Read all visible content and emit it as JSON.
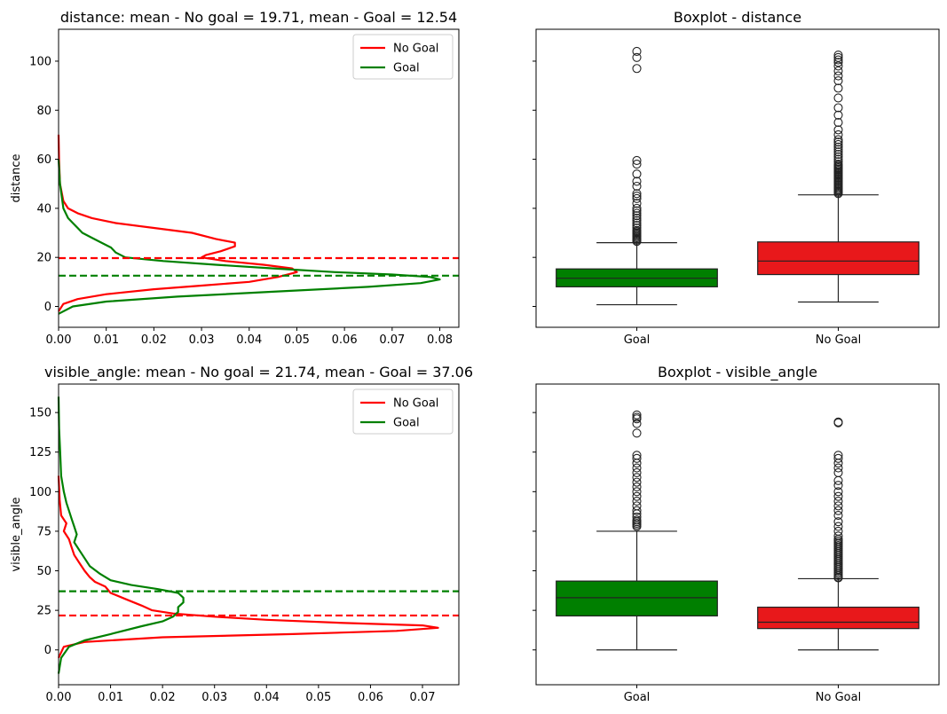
{
  "colors": {
    "no_goal": "#ff0000",
    "goal": "#008000",
    "box_goal": "#007f00",
    "box_no_goal": "#e8181b"
  },
  "chart_data": [
    {
      "type": "line",
      "orientation": "horizontal-density",
      "title": "distance: mean - No goal = 19.71, mean - Goal = 12.54",
      "ylabel": "distance",
      "xlabel": "",
      "xlim": [
        0,
        0.084
      ],
      "ylim": [
        -8.5,
        113
      ],
      "xticks": [
        "0.00",
        "0.01",
        "0.02",
        "0.03",
        "0.04",
        "0.05",
        "0.06",
        "0.07",
        "0.08"
      ],
      "xtick_values": [
        0,
        0.01,
        0.02,
        0.03,
        0.04,
        0.05,
        0.06,
        0.07,
        0.08
      ],
      "yticks": [
        "0",
        "20",
        "40",
        "60",
        "80",
        "100"
      ],
      "ytick_values": [
        0,
        20,
        40,
        60,
        80,
        100
      ],
      "legend": {
        "placement": "top-right",
        "entries": [
          "No Goal",
          "Goal"
        ]
      },
      "means": [
        {
          "series": "No Goal",
          "value": 19.71
        },
        {
          "series": "Goal",
          "value": 12.54
        }
      ],
      "series": [
        {
          "name": "No Goal",
          "color": "#ff0000",
          "points": [
            [
              0,
              -2
            ],
            [
              0.001,
              1
            ],
            [
              0.004,
              3
            ],
            [
              0.01,
              5
            ],
            [
              0.02,
              7
            ],
            [
              0.03,
              8.5
            ],
            [
              0.04,
              10
            ],
            [
              0.046,
              12
            ],
            [
              0.05,
              14
            ],
            [
              0.049,
              15.5
            ],
            [
              0.043,
              17
            ],
            [
              0.035,
              18.5
            ],
            [
              0.03,
              20
            ],
            [
              0.031,
              21
            ],
            [
              0.034,
              22.5
            ],
            [
              0.037,
              24.5
            ],
            [
              0.037,
              26
            ],
            [
              0.033,
              27.5
            ],
            [
              0.028,
              30
            ],
            [
              0.02,
              32
            ],
            [
              0.012,
              34
            ],
            [
              0.007,
              36
            ],
            [
              0.004,
              38
            ],
            [
              0.002,
              40
            ],
            [
              0.001,
              43
            ],
            [
              0.0003,
              50
            ],
            [
              0.0001,
              60
            ],
            [
              0,
              70
            ]
          ]
        },
        {
          "name": "Goal",
          "color": "#008000",
          "points": [
            [
              0,
              -3
            ],
            [
              0.003,
              0
            ],
            [
              0.01,
              2
            ],
            [
              0.025,
              4
            ],
            [
              0.045,
              6
            ],
            [
              0.065,
              8
            ],
            [
              0.076,
              9.5
            ],
            [
              0.08,
              11
            ],
            [
              0.078,
              12
            ],
            [
              0.07,
              13
            ],
            [
              0.058,
              14
            ],
            [
              0.045,
              15.5
            ],
            [
              0.033,
              17
            ],
            [
              0.022,
              18.5
            ],
            [
              0.014,
              20
            ],
            [
              0.012,
              22
            ],
            [
              0.011,
              24
            ],
            [
              0.009,
              26
            ],
            [
              0.007,
              28
            ],
            [
              0.005,
              30
            ],
            [
              0.004,
              32
            ],
            [
              0.003,
              34
            ],
            [
              0.002,
              36
            ],
            [
              0.001,
              40
            ],
            [
              0.0003,
              50
            ],
            [
              0,
              60
            ]
          ]
        }
      ]
    },
    {
      "type": "box",
      "title": "Boxplot - distance",
      "categories": [
        "Goal",
        "No Goal"
      ],
      "ylim": [
        -8.5,
        113
      ],
      "boxes": [
        {
          "category": "Goal",
          "color": "#007f00",
          "whisker_low": 0.7,
          "q1": 8,
          "median": 11.5,
          "q3": 15.3,
          "whisker_high": 26,
          "outliers": [
            26.5,
            27,
            27.5,
            28,
            28.5,
            29,
            29.5,
            30,
            30.5,
            31,
            32,
            33,
            34,
            35,
            36,
            37,
            38,
            39,
            40,
            42,
            44,
            45,
            46,
            49,
            51,
            54,
            58,
            59.5,
            97,
            101.5,
            104
          ]
        },
        {
          "category": "No Goal",
          "color": "#e8181b",
          "whisker_low": 1.8,
          "q1": 13,
          "median": 18.5,
          "q3": 26.3,
          "whisker_high": 45.5,
          "outliers": [
            46,
            46.5,
            47,
            47.5,
            48,
            48.5,
            49,
            49.5,
            50,
            50.5,
            51,
            51.5,
            52,
            52.5,
            53,
            53.5,
            54,
            54.5,
            55,
            55.5,
            56,
            56.5,
            57,
            57.5,
            58,
            59,
            60,
            61,
            62,
            63,
            64,
            65,
            66,
            67,
            68,
            70,
            72,
            75,
            78,
            81,
            85,
            89,
            92,
            94,
            96,
            98,
            99.5,
            100.5,
            101.5,
            102.5
          ]
        }
      ]
    },
    {
      "type": "line",
      "orientation": "horizontal-density",
      "title": "visible_angle: mean - No goal = 21.74, mean - Goal = 37.06",
      "ylabel": "visible_angle",
      "xlabel": "",
      "xlim": [
        0,
        0.077
      ],
      "ylim": [
        -22,
        168
      ],
      "xticks": [
        "0.00",
        "0.01",
        "0.02",
        "0.03",
        "0.04",
        "0.05",
        "0.06",
        "0.07"
      ],
      "xtick_values": [
        0,
        0.01,
        0.02,
        0.03,
        0.04,
        0.05,
        0.06,
        0.07
      ],
      "yticks": [
        "0",
        "25",
        "50",
        "75",
        "100",
        "125",
        "150"
      ],
      "ytick_values": [
        0,
        25,
        50,
        75,
        100,
        125,
        150
      ],
      "legend": {
        "placement": "top-right",
        "entries": [
          "No Goal",
          "Goal"
        ]
      },
      "means": [
        {
          "series": "No Goal",
          "value": 21.74
        },
        {
          "series": "Goal",
          "value": 37.06
        }
      ],
      "series": [
        {
          "name": "No Goal",
          "color": "#ff0000",
          "points": [
            [
              0,
              -5
            ],
            [
              0.001,
              2
            ],
            [
              0.005,
              5
            ],
            [
              0.02,
              8
            ],
            [
              0.045,
              10
            ],
            [
              0.065,
              12
            ],
            [
              0.073,
              14
            ],
            [
              0.07,
              15.5
            ],
            [
              0.055,
              17
            ],
            [
              0.04,
              19
            ],
            [
              0.03,
              21
            ],
            [
              0.022,
              23
            ],
            [
              0.018,
              25
            ],
            [
              0.016,
              28
            ],
            [
              0.013,
              32
            ],
            [
              0.01,
              36
            ],
            [
              0.009,
              40
            ],
            [
              0.007,
              43
            ],
            [
              0.006,
              46
            ],
            [
              0.005,
              50
            ],
            [
              0.004,
              55
            ],
            [
              0.003,
              60
            ],
            [
              0.0025,
              65
            ],
            [
              0.002,
              70
            ],
            [
              0.001,
              75
            ],
            [
              0.0015,
              80
            ],
            [
              0.0005,
              85
            ],
            [
              0.0002,
              95
            ],
            [
              0,
              110
            ]
          ]
        },
        {
          "name": "Goal",
          "color": "#008000",
          "points": [
            [
              0,
              -15
            ],
            [
              0.0005,
              -5
            ],
            [
              0.002,
              2
            ],
            [
              0.005,
              6
            ],
            [
              0.01,
              10
            ],
            [
              0.016,
              15
            ],
            [
              0.02,
              18
            ],
            [
              0.022,
              21
            ],
            [
              0.023,
              24
            ],
            [
              0.023,
              27
            ],
            [
              0.024,
              30
            ],
            [
              0.024,
              33
            ],
            [
              0.023,
              36
            ],
            [
              0.019,
              38.5
            ],
            [
              0.014,
              41
            ],
            [
              0.01,
              44
            ],
            [
              0.008,
              48
            ],
            [
              0.006,
              53
            ],
            [
              0.005,
              58
            ],
            [
              0.004,
              63
            ],
            [
              0.003,
              68
            ],
            [
              0.0035,
              73
            ],
            [
              0.003,
              78
            ],
            [
              0.0025,
              83
            ],
            [
              0.002,
              88
            ],
            [
              0.0015,
              93
            ],
            [
              0.001,
              100
            ],
            [
              0.0005,
              110
            ],
            [
              0.0003,
              125
            ],
            [
              0.0001,
              140
            ],
            [
              0,
              160
            ]
          ]
        }
      ]
    },
    {
      "type": "box",
      "title": "Boxplot - visible_angle",
      "categories": [
        "Goal",
        "No Goal"
      ],
      "ylim": [
        -22,
        168
      ],
      "boxes": [
        {
          "category": "Goal",
          "color": "#007f00",
          "whisker_low": 0,
          "q1": 21.5,
          "median": 33,
          "q3": 43.5,
          "whisker_high": 75,
          "outliers": [
            78,
            79,
            80,
            81,
            82,
            84,
            86,
            88,
            91,
            94,
            97,
            100,
            103,
            106,
            109,
            112,
            115,
            118,
            121,
            123,
            137,
            143,
            146,
            147,
            148.5
          ]
        },
        {
          "category": "No Goal",
          "color": "#e8181b",
          "whisker_low": 0,
          "q1": 13.5,
          "median": 17.5,
          "q3": 27,
          "whisker_high": 45,
          "outliers": [
            45.5,
            46,
            47,
            48,
            49,
            50,
            51,
            52,
            53,
            54,
            55,
            56,
            57,
            58,
            59,
            60,
            61,
            62,
            63,
            64,
            65,
            66,
            67,
            68,
            69,
            70,
            72,
            75,
            78,
            81,
            85,
            88,
            91,
            94,
            97,
            100,
            104,
            107,
            112,
            115,
            118,
            121,
            123,
            143.5,
            144
          ]
        }
      ]
    }
  ]
}
